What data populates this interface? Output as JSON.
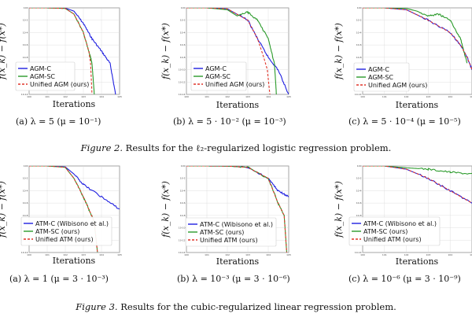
{
  "figures": [
    {
      "caption_label": "Figure 2.",
      "caption_text": " Results for the ℓ₂-regularized logistic regression problem."
    },
    {
      "caption_label": "Figure 3.",
      "caption_text": " Results for the cubic-regularized linear regression problem."
    }
  ],
  "chart_data": [
    {
      "type": "line",
      "subcaption": "(a)  λ = 5 (μ = 10⁻¹)",
      "xlabel": "Iterations",
      "ylabel": "f(x_k) − f(x*)",
      "xscale": "log",
      "yscale": "log",
      "grid": true,
      "legend_placement": "bottom-left",
      "x_range": [
        1,
        100000
      ],
      "y_range": [
        1e-14,
        1
      ],
      "series": [
        {
          "name": "AGM-C",
          "color": "#1f1fe0",
          "dash": false,
          "x": [
            1,
            10,
            100,
            300,
            1000,
            3000,
            10000,
            30000,
            60000
          ],
          "y": [
            1,
            1,
            0.9,
            0.3,
            0.003,
            1e-05,
            1e-07,
            1e-09,
            1e-14
          ]
        },
        {
          "name": "AGM-SC",
          "color": "#2a9a2a",
          "dash": false,
          "x": [
            1,
            10,
            100,
            300,
            1000,
            2000,
            3000,
            4000
          ],
          "y": [
            1,
            1,
            0.8,
            0.1,
            0.0001,
            1e-07,
            1e-09,
            1e-14
          ]
        },
        {
          "name": "Unified AGM (ours)",
          "color": "#e0352a",
          "dash": true,
          "x": [
            1,
            10,
            100,
            300,
            1000,
            2000,
            2500,
            3000
          ],
          "y": [
            1,
            1,
            0.8,
            0.1,
            0.0001,
            1e-07,
            1e-09,
            1e-14
          ]
        }
      ]
    },
    {
      "type": "line",
      "subcaption": "(b)  λ = 5 · 10⁻² (μ = 10⁻³)",
      "xlabel": "Iterations",
      "ylabel": "f(x_k) − f(x*)",
      "xscale": "log",
      "yscale": "log",
      "grid": true,
      "legend_placement": "bottom-left",
      "x_range": [
        1,
        100000
      ],
      "y_range": [
        1e-14,
        1
      ],
      "series": [
        {
          "name": "AGM-C",
          "color": "#1f1fe0",
          "dash": false,
          "x": [
            1,
            10,
            100,
            1000,
            3000,
            10000,
            30000,
            100000
          ],
          "y": [
            1,
            1,
            0.7,
            0.01,
            1e-05,
            1e-08,
            1e-10,
            1e-14
          ]
        },
        {
          "name": "AGM-SC",
          "color": "#2a9a2a",
          "dash": false,
          "x": [
            1,
            10,
            100,
            300,
            1000,
            3000,
            10000,
            20000,
            25000
          ],
          "y": [
            1,
            1,
            0.5,
            0.05,
            0.2,
            0.01,
            1e-05,
            1e-09,
            1e-14
          ]
        },
        {
          "name": "Unified AGM (ours)",
          "color": "#e0352a",
          "dash": true,
          "x": [
            1,
            10,
            100,
            1000,
            3000,
            6000,
            9000,
            12000
          ],
          "y": [
            1,
            1,
            0.7,
            0.01,
            1e-05,
            1e-08,
            1e-10,
            1e-14
          ]
        }
      ]
    },
    {
      "type": "line",
      "subcaption": "(c)  λ = 5 · 10⁻⁴ (μ = 10⁻⁵)",
      "xlabel": "Iterations",
      "ylabel": "f(x_k) − f(x*)",
      "xscale": "log",
      "yscale": "log",
      "grid": true,
      "legend_placement": "bottom-left",
      "x_range": [
        1,
        100000
      ],
      "y_range": [
        1e-14,
        1
      ],
      "series": [
        {
          "name": "AGM-C",
          "color": "#1f1fe0",
          "dash": false,
          "x": [
            1,
            10,
            100,
            1000,
            10000,
            30000,
            60000,
            100000
          ],
          "y": [
            1,
            1,
            0.5,
            0.01,
            0.0001,
            1e-06,
            1e-08,
            1e-10
          ]
        },
        {
          "name": "AGM-SC",
          "color": "#2a9a2a",
          "dash": false,
          "x": [
            1,
            10,
            100,
            300,
            1000,
            3000,
            10000,
            30000,
            60000
          ],
          "y": [
            1,
            1,
            0.8,
            0.3,
            0.05,
            0.1,
            0.01,
            1e-05,
            1e-09
          ]
        },
        {
          "name": "Unified AGM (ours)",
          "color": "#e0352a",
          "dash": true,
          "x": [
            1,
            10,
            100,
            1000,
            10000,
            30000,
            60000,
            100000
          ],
          "y": [
            1,
            1,
            0.5,
            0.01,
            0.0001,
            1e-06,
            1e-08,
            1e-10
          ]
        }
      ]
    },
    {
      "type": "line",
      "subcaption": "(a)  λ = 1 (μ = 3 · 10⁻³)",
      "xlabel": "Iterations",
      "ylabel": "f(x_k) − f(x*)",
      "xscale": "log",
      "yscale": "log",
      "grid": true,
      "legend_placement": "bottom-left",
      "x_range": [
        1,
        100000
      ],
      "y_range": [
        1e-14,
        1
      ],
      "series": [
        {
          "name": "ATM-C (Wibisono et al.)",
          "color": "#1f1fe0",
          "dash": false,
          "x": [
            1,
            10,
            100,
            300,
            1000,
            10000,
            100000
          ],
          "y": [
            1,
            1,
            0.7,
            0.05,
            0.001,
            1e-05,
            1e-07
          ]
        },
        {
          "name": "ATM-SC (ours)",
          "color": "#2a9a2a",
          "dash": false,
          "x": [
            1,
            10,
            100,
            300,
            1000,
            2000,
            4000,
            6000
          ],
          "y": [
            1,
            1,
            0.6,
            0.01,
            1e-05,
            1e-07,
            1e-09,
            1e-14
          ]
        },
        {
          "name": "Unified ATM (ours)",
          "color": "#e0352a",
          "dash": true,
          "x": [
            1,
            10,
            100,
            300,
            1000,
            2000,
            4000,
            6000
          ],
          "y": [
            1,
            1,
            0.6,
            0.01,
            1e-05,
            1e-07,
            1e-09,
            1e-14
          ]
        }
      ]
    },
    {
      "type": "line",
      "subcaption": "(b)  λ = 10⁻³ (μ = 3 · 10⁻⁶)",
      "xlabel": "Iterations",
      "ylabel": "f(x_k) − f(x*)",
      "xscale": "log",
      "yscale": "log",
      "grid": true,
      "legend_placement": "bottom-left",
      "x_range": [
        1,
        100000
      ],
      "y_range": [
        1e-14,
        1
      ],
      "series": [
        {
          "name": "ATM-C (Wibisono et al.)",
          "color": "#1f1fe0",
          "dash": false,
          "x": [
            1,
            10,
            100,
            1000,
            10000,
            30000,
            100000
          ],
          "y": [
            1,
            1,
            0.95,
            0.6,
            0.01,
            0.0001,
            1e-05
          ]
        },
        {
          "name": "ATM-SC (ours)",
          "color": "#2a9a2a",
          "dash": false,
          "x": [
            1,
            10,
            100,
            1000,
            10000,
            30000,
            60000,
            80000
          ],
          "y": [
            1,
            1,
            0.95,
            0.6,
            0.01,
            1e-06,
            1e-08,
            1e-14
          ]
        },
        {
          "name": "Unified ATM (ours)",
          "color": "#e0352a",
          "dash": true,
          "x": [
            1,
            10,
            100,
            1000,
            10000,
            30000,
            60000,
            80000
          ],
          "y": [
            1,
            1,
            0.95,
            0.6,
            0.01,
            1e-06,
            1e-08,
            1e-14
          ]
        }
      ]
    },
    {
      "type": "line",
      "subcaption": "(c)  λ = 10⁻⁶ (μ = 3 · 10⁻⁹)",
      "xlabel": "Iterations",
      "ylabel": "f(x_k) − f(x*)",
      "xscale": "log",
      "yscale": "log",
      "grid": true,
      "legend_placement": "bottom-left",
      "x_range": [
        1,
        100000
      ],
      "y_range": [
        1e-14,
        1
      ],
      "series": [
        {
          "name": "ATM-C (Wibisono et al.)",
          "color": "#1f1fe0",
          "dash": false,
          "x": [
            1,
            10,
            100,
            1000,
            10000,
            100000
          ],
          "y": [
            1,
            1,
            0.3,
            0.01,
            0.0001,
            1e-06
          ]
        },
        {
          "name": "ATM-SC (ours)",
          "color": "#2a9a2a",
          "dash": false,
          "x": [
            1,
            10,
            100,
            1000,
            10000,
            100000
          ],
          "y": [
            1,
            1,
            0.5,
            0.3,
            0.1,
            0.05
          ]
        },
        {
          "name": "Unified ATM (ours)",
          "color": "#e0352a",
          "dash": true,
          "x": [
            1,
            10,
            100,
            1000,
            10000,
            100000
          ],
          "y": [
            1,
            1,
            0.3,
            0.01,
            0.0001,
            1e-06
          ]
        }
      ]
    }
  ]
}
